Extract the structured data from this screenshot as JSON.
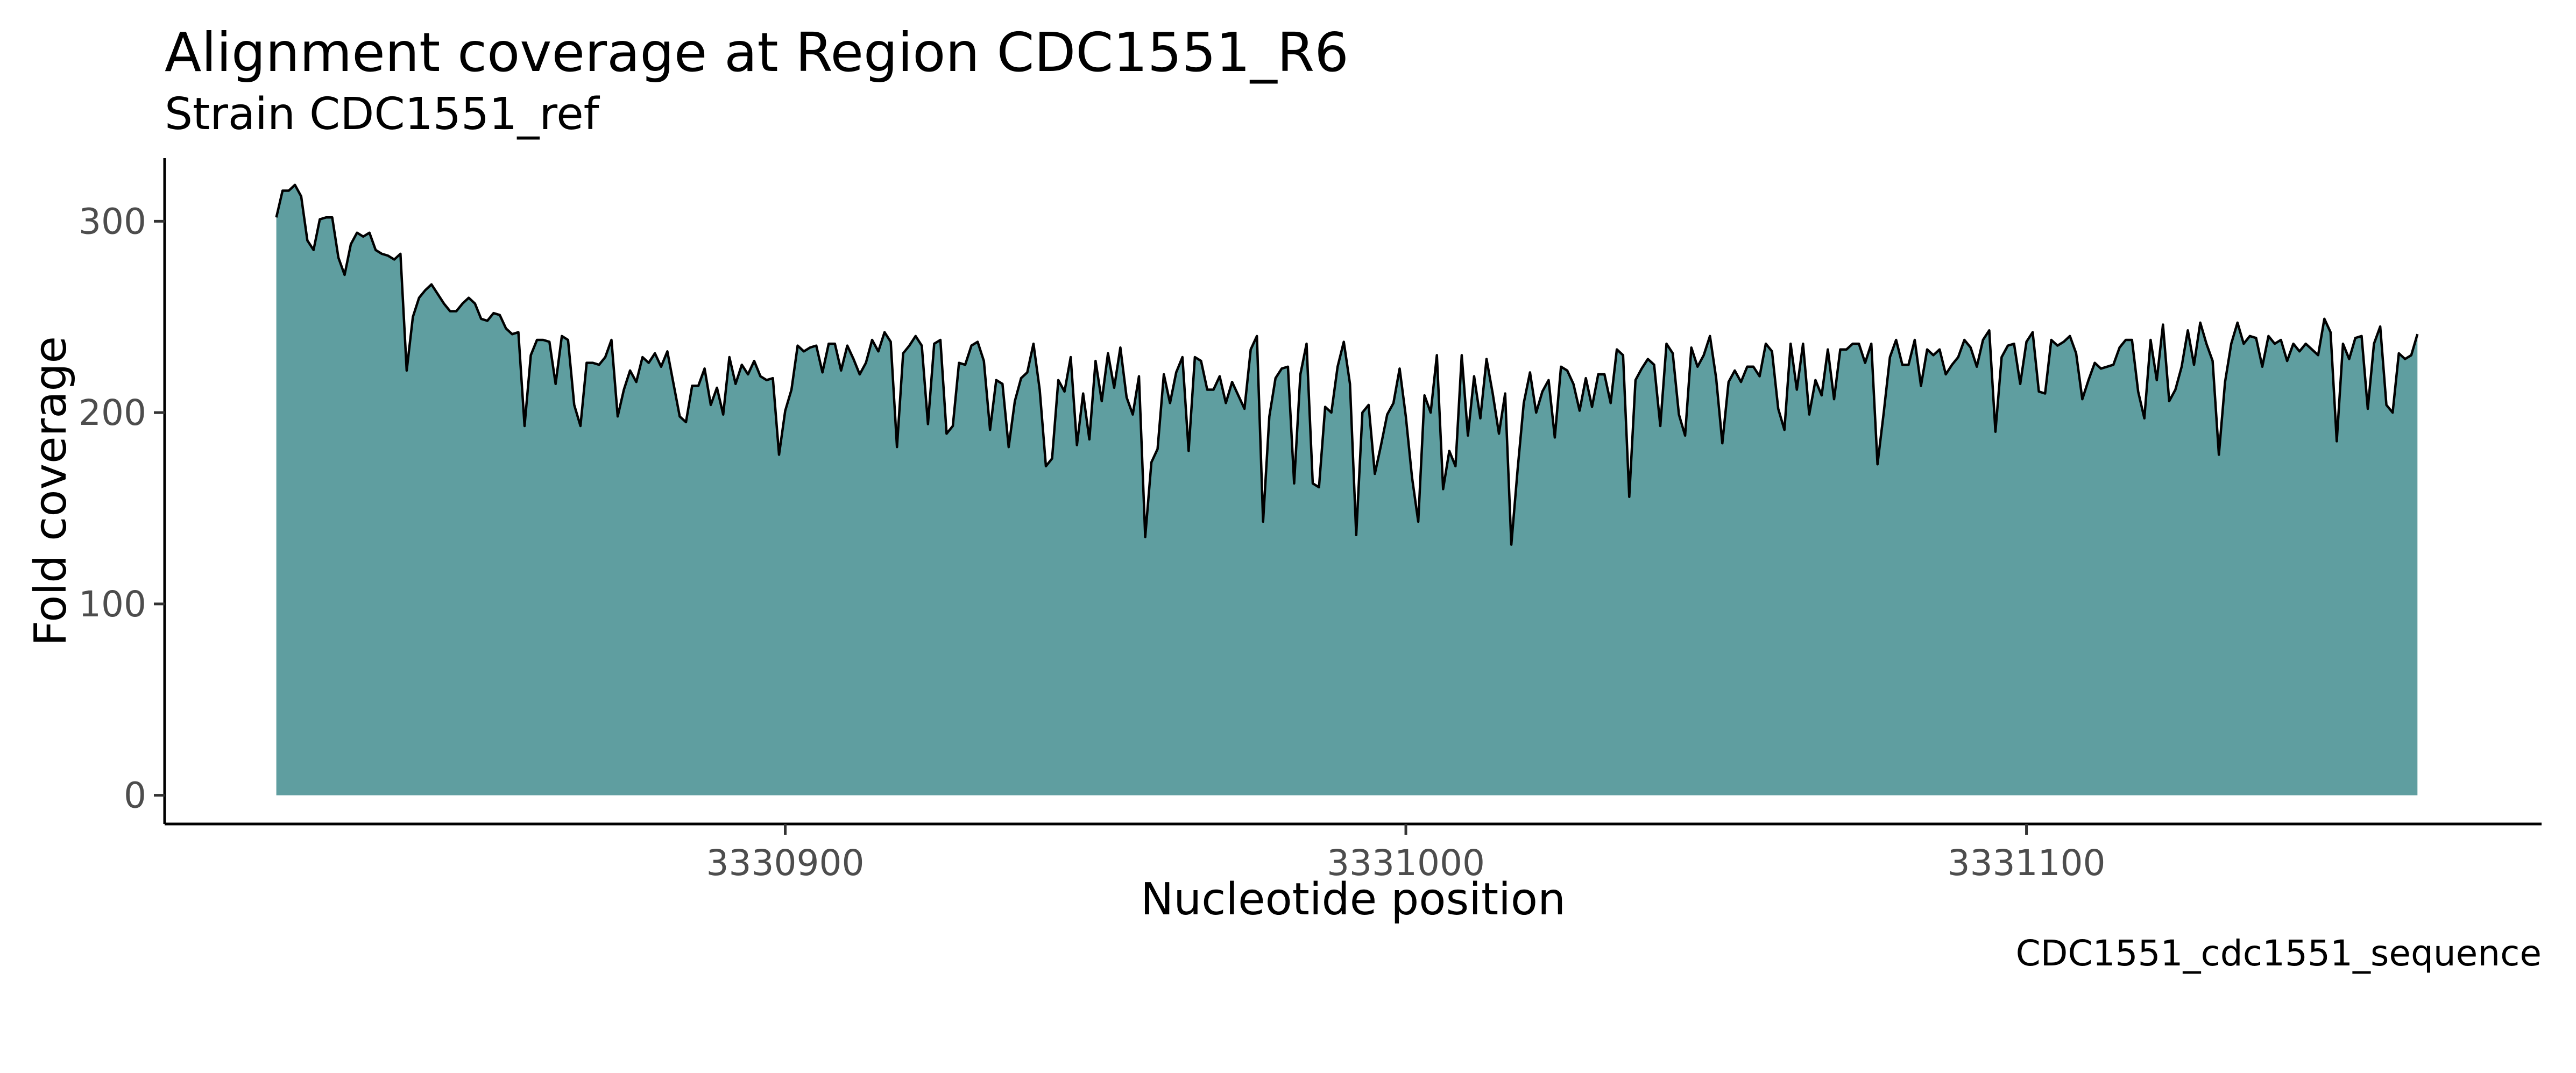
{
  "chart_data": {
    "type": "area",
    "title": "Alignment coverage at Region CDC1551_R6",
    "subtitle": "Strain CDC1551_ref",
    "xlabel": "Nucleotide position",
    "ylabel": "Fold coverage",
    "caption": "CDC1551_cdc1551_sequence",
    "xlim": [
      3330800,
      3331183
    ],
    "ylim": [
      -15,
      333
    ],
    "xticks": [
      3330900,
      3331000,
      3331100
    ],
    "xtick_labels": [
      "3330900",
      "3331000",
      "3331100"
    ],
    "yticks": [
      0,
      100,
      200,
      300
    ],
    "ytick_labels": [
      "0",
      "100",
      "200",
      "300"
    ],
    "grid": false,
    "legend": "none",
    "fill_color": "#5f9ea0",
    "line_color": "#000000",
    "x_start": 3330818,
    "x_step": 1,
    "y": [
      302,
      316,
      316,
      319,
      313,
      290,
      285,
      301,
      302,
      302,
      281,
      272,
      288,
      294,
      292,
      294,
      285,
      283,
      282,
      280,
      283,
      222,
      250,
      260,
      264,
      267,
      262,
      257,
      253,
      253,
      257,
      260,
      257,
      249,
      248,
      252,
      251,
      244,
      241,
      242,
      193,
      230,
      238,
      238,
      237,
      215,
      240,
      238,
      204,
      193,
      226,
      226,
      225,
      229,
      238,
      198,
      212,
      222,
      216,
      229,
      226,
      231,
      224,
      232,
      215,
      198,
      195,
      214,
      214,
      223,
      204,
      213,
      199,
      229,
      215,
      225,
      220,
      227,
      219,
      217,
      218,
      178,
      201,
      212,
      235,
      232,
      234,
      235,
      221,
      236,
      236,
      222,
      235,
      228,
      220,
      226,
      238,
      232,
      242,
      237,
      182,
      231,
      235,
      240,
      235,
      194,
      236,
      238,
      189,
      193,
      226,
      225,
      235,
      237,
      227,
      191,
      217,
      215,
      182,
      206,
      218,
      221,
      236,
      212,
      172,
      176,
      217,
      211,
      229,
      183,
      210,
      186,
      227,
      206,
      231,
      213,
      234,
      208,
      199,
      219,
      135,
      174,
      181,
      220,
      205,
      221,
      229,
      180,
      229,
      227,
      212,
      212,
      219,
      205,
      216,
      209,
      202,
      233,
      240,
      143,
      198,
      218,
      223,
      224,
      163,
      220,
      236,
      163,
      161,
      203,
      200,
      224,
      237,
      215,
      136,
      200,
      204,
      168,
      183,
      199,
      205,
      223,
      198,
      166,
      143,
      209,
      200,
      230,
      160,
      180,
      172,
      230,
      188,
      219,
      197,
      228,
      210,
      189,
      210,
      131,
      170,
      205,
      221,
      200,
      211,
      217,
      187,
      224,
      222,
      215,
      201,
      218,
      203,
      220,
      220,
      205,
      233,
      230,
      156,
      217,
      223,
      228,
      225,
      193,
      236,
      231,
      199,
      188,
      234,
      224,
      230,
      240,
      218,
      184,
      216,
      222,
      216,
      224,
      224,
      219,
      236,
      232,
      202,
      191,
      236,
      212,
      236,
      199,
      217,
      209,
      233,
      207,
      233,
      233,
      236,
      236,
      226,
      236,
      173,
      200,
      229,
      238,
      225,
      225,
      238,
      214,
      233,
      230,
      233,
      220,
      225,
      229,
      238,
      234,
      224,
      238,
      243,
      190,
      229,
      235,
      236,
      215,
      237,
      242,
      211,
      210,
      238,
      235,
      237,
      240,
      231,
      207,
      217,
      226,
      223,
      224,
      225,
      234,
      238,
      238,
      211,
      197,
      238,
      217,
      246,
      206,
      212,
      224,
      243,
      225,
      247,
      236,
      227,
      178,
      216,
      236,
      247,
      236,
      240,
      239,
      224,
      240,
      236,
      238,
      227,
      236,
      232,
      236,
      233,
      230,
      249,
      242,
      185,
      236,
      228,
      239,
      240,
      202,
      236,
      245,
      204,
      200,
      231,
      228,
      230,
      241
    ]
  }
}
